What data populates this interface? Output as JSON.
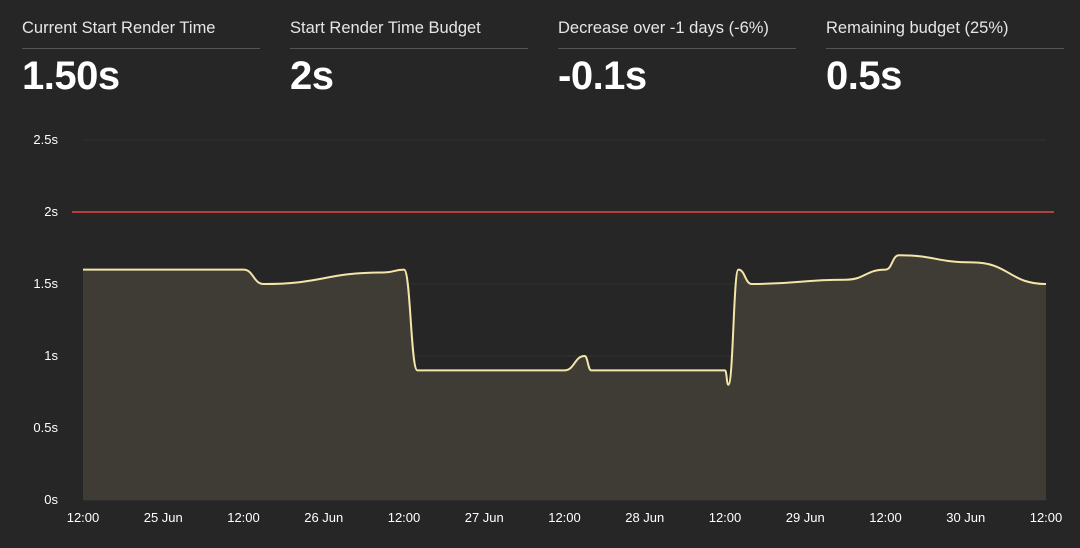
{
  "stats": [
    {
      "label": "Current Start Render Time",
      "value": "1.50s"
    },
    {
      "label": "Start Render Time Budget",
      "value": "2s"
    },
    {
      "label": "Decrease over -1 days (-6%)",
      "value": "-0.1s"
    },
    {
      "label": "Remaining budget (25%)",
      "value": "0.5s"
    }
  ],
  "colors": {
    "background": "#262626",
    "series_line": "#f3e6a8",
    "series_fill": "#3f3c36",
    "budget_line": "#b3403f",
    "axis_text": "#ffffff"
  },
  "chart_data": {
    "type": "area",
    "title": "",
    "xlabel": "",
    "ylabel": "",
    "ylim": [
      0,
      2.5
    ],
    "yticks": [
      "0s",
      "0.5s",
      "1s",
      "1.5s",
      "2s",
      "2.5s"
    ],
    "ytick_values": [
      0,
      0.5,
      1,
      1.5,
      2,
      2.5
    ],
    "xlim": [
      "24 Jun 12:00",
      "30 Jun 12:00"
    ],
    "xticks": [
      "12:00",
      "25 Jun",
      "12:00",
      "26 Jun",
      "12:00",
      "27 Jun",
      "12:00",
      "28 Jun",
      "12:00",
      "29 Jun",
      "12:00",
      "30 Jun",
      "12:00"
    ],
    "grid": true,
    "budget": {
      "value": 2
    },
    "series": [
      {
        "points": [
          {
            "x": "24 Jun 12:00",
            "y": 1.6
          },
          {
            "x": "25 Jun 12:00",
            "y": 1.6
          },
          {
            "x": "25 Jun 15:00",
            "y": 1.5
          },
          {
            "x": "26 Jun 09:00",
            "y": 1.58
          },
          {
            "x": "26 Jun 12:00",
            "y": 1.6
          },
          {
            "x": "26 Jun 14:00",
            "y": 0.9
          },
          {
            "x": "27 Jun 12:00",
            "y": 0.9
          },
          {
            "x": "27 Jun 15:00",
            "y": 1.0
          },
          {
            "x": "27 Jun 16:00",
            "y": 0.9
          },
          {
            "x": "28 Jun 12:00",
            "y": 0.9
          },
          {
            "x": "28 Jun 12:30",
            "y": 0.8
          },
          {
            "x": "28 Jun 14:00",
            "y": 1.6
          },
          {
            "x": "28 Jun 16:00",
            "y": 1.5
          },
          {
            "x": "29 Jun 06:00",
            "y": 1.53
          },
          {
            "x": "29 Jun 12:00",
            "y": 1.6
          },
          {
            "x": "29 Jun 14:00",
            "y": 1.7
          },
          {
            "x": "30 Jun 01:00",
            "y": 1.65
          },
          {
            "x": "30 Jun 12:00",
            "y": 1.5
          }
        ]
      }
    ]
  }
}
